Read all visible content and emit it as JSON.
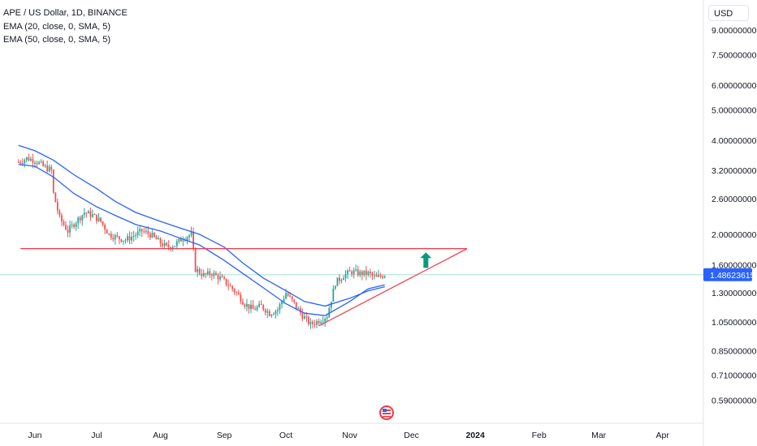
{
  "legend": {
    "symbol": "APE / US Dollar, 1D, BINANCE",
    "ema1": "EMA (20, close, 0, SMA, 5)",
    "ema2": "EMA (50, close, 0, SMA, 5)"
  },
  "currency_button": "USD",
  "current_price_label": "1.48623615",
  "colors": {
    "up": "#26a69a",
    "down": "#ef5350",
    "ema": "#2962ff",
    "resistance": "#f23645",
    "arrow": "#089981",
    "price_tag": "#2962ff",
    "current_price_line": "#a7e3dc"
  },
  "logo_icon": "us-flag-circle-icon",
  "arrow_icon": "up-arrow-icon",
  "chart_data": {
    "type": "candlestick",
    "title": "APE / US Dollar, 1D, BINANCE",
    "y_scale": "log",
    "y_ticks": [
      "9.00000000",
      "7.50000000",
      "6.00000000",
      "5.00000000",
      "4.00000000",
      "3.20000000",
      "2.60000000",
      "2.00000000",
      "1.60000000",
      "1.30000000",
      "1.05000000",
      "0.85000000",
      "0.71000000",
      "0.59000000"
    ],
    "x_ticks": [
      "Jun",
      "Jul",
      "Aug",
      "Sep",
      "Oct",
      "Nov",
      "Dec",
      "2024",
      "Feb",
      "Mar",
      "Apr"
    ],
    "x_ticks_bold": [
      "2024"
    ],
    "series": [
      {
        "name": "EMA (20, close, 0, SMA, 5)",
        "x": [
          "2023-05-24",
          "2023-06-01",
          "2023-06-10",
          "2023-06-20",
          "2023-07-01",
          "2023-07-10",
          "2023-07-20",
          "2023-08-01",
          "2023-08-10",
          "2023-08-20",
          "2023-09-01",
          "2023-09-10",
          "2023-09-20",
          "2023-10-01",
          "2023-10-10",
          "2023-10-20",
          "2023-11-01",
          "2023-11-10",
          "2023-11-18"
        ],
        "y": [
          3.35,
          3.3,
          3.05,
          2.7,
          2.45,
          2.3,
          2.15,
          2.05,
          1.95,
          1.85,
          1.65,
          1.5,
          1.35,
          1.2,
          1.12,
          1.1,
          1.22,
          1.34,
          1.38
        ]
      },
      {
        "name": "EMA (50, close, 0, SMA, 5)",
        "x": [
          "2023-05-24",
          "2023-06-01",
          "2023-06-10",
          "2023-06-20",
          "2023-07-01",
          "2023-07-10",
          "2023-07-20",
          "2023-08-01",
          "2023-08-10",
          "2023-08-20",
          "2023-09-01",
          "2023-09-10",
          "2023-09-20",
          "2023-10-01",
          "2023-10-10",
          "2023-10-20",
          "2023-11-01",
          "2023-11-10",
          "2023-11-18"
        ],
        "y": [
          3.85,
          3.7,
          3.45,
          3.1,
          2.8,
          2.55,
          2.35,
          2.2,
          2.1,
          2.0,
          1.82,
          1.62,
          1.45,
          1.32,
          1.22,
          1.18,
          1.25,
          1.32,
          1.36
        ]
      }
    ],
    "close_points": {
      "x": [
        "2023-05-24",
        "2023-05-28",
        "2023-06-01",
        "2023-06-05",
        "2023-06-09",
        "2023-06-10",
        "2023-06-13",
        "2023-06-17",
        "2023-06-21",
        "2023-06-25",
        "2023-06-29",
        "2023-07-03",
        "2023-07-07",
        "2023-07-11",
        "2023-07-15",
        "2023-07-19",
        "2023-07-23",
        "2023-07-27",
        "2023-07-31",
        "2023-08-04",
        "2023-08-08",
        "2023-08-12",
        "2023-08-16",
        "2023-08-18",
        "2023-08-22",
        "2023-08-26",
        "2023-08-30",
        "2023-09-03",
        "2023-09-07",
        "2023-09-11",
        "2023-09-15",
        "2023-09-19",
        "2023-09-23",
        "2023-09-27",
        "2023-10-01",
        "2023-10-05",
        "2023-10-09",
        "2023-10-13",
        "2023-10-17",
        "2023-10-21",
        "2023-10-25",
        "2023-10-29",
        "2023-11-02",
        "2023-11-06",
        "2023-11-10",
        "2023-11-14",
        "2023-11-18"
      ],
      "y": [
        3.4,
        3.5,
        3.45,
        3.3,
        3.2,
        2.7,
        2.25,
        2.05,
        2.2,
        2.35,
        2.3,
        2.2,
        2.0,
        1.95,
        1.92,
        1.98,
        2.05,
        2.0,
        1.9,
        1.82,
        1.85,
        1.95,
        2.0,
        1.55,
        1.48,
        1.5,
        1.45,
        1.38,
        1.3,
        1.2,
        1.15,
        1.18,
        1.12,
        1.15,
        1.3,
        1.2,
        1.1,
        1.03,
        1.06,
        1.1,
        1.4,
        1.48,
        1.52,
        1.5,
        1.5,
        1.45,
        1.49
      ]
    },
    "annotations": [
      {
        "type": "horizontal_line",
        "label": "resistance",
        "price": 1.8,
        "from": "2023-05-25",
        "to": "2023-12-28"
      },
      {
        "type": "trend_line",
        "label": "support",
        "from": {
          "x": "2023-10-17",
          "y": 1.02
        },
        "to": {
          "x": "2023-12-28",
          "y": 1.8
        }
      },
      {
        "type": "arrow_up",
        "at": {
          "x": "2023-12-08",
          "y": 1.68
        }
      }
    ],
    "current_price": 1.48623615,
    "grid": false,
    "legend_position": "top-left"
  }
}
